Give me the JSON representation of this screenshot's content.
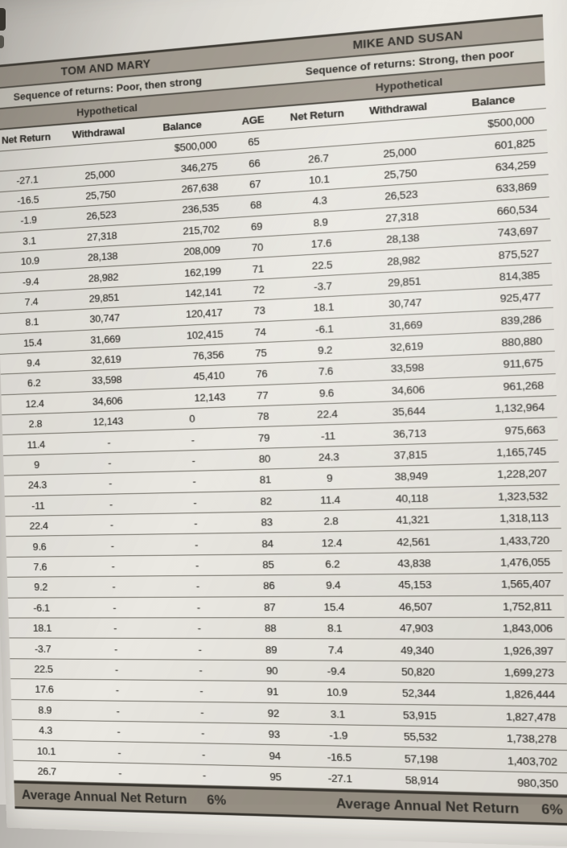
{
  "document": {
    "age_header": "AGE",
    "left_panel": {
      "title": "TOM AND MARY",
      "sequence_label": "Sequence of returns: Poor, then strong",
      "hypothetical_label": "Hypothetical",
      "col_net_return": "Net Return",
      "col_withdrawal": "Withdrawal",
      "col_balance": "Balance",
      "footer_label": "Average Annual Net Return",
      "footer_value": "6%"
    },
    "right_panel": {
      "title": "MIKE AND SUSAN",
      "sequence_label": "Sequence of returns: Strong, then poor",
      "hypothetical_label": "Hypothetical",
      "col_net_return": "Net Return",
      "col_withdrawal": "Withdrawal",
      "col_balance": "Balance",
      "footer_label": "Average Annual Net Return",
      "footer_value": "6%"
    },
    "rows": [
      {
        "age": "65",
        "left": [
          "",
          "",
          "$500,000"
        ],
        "right": [
          "",
          "",
          "$500,000"
        ]
      },
      {
        "age": "66",
        "left": [
          "-27.1",
          "25,000",
          "346,275"
        ],
        "right": [
          "26.7",
          "25,000",
          "601,825"
        ]
      },
      {
        "age": "67",
        "left": [
          "-16.5",
          "25,750",
          "267,638"
        ],
        "right": [
          "10.1",
          "25,750",
          "634,259"
        ]
      },
      {
        "age": "68",
        "left": [
          "-1.9",
          "26,523",
          "236,535"
        ],
        "right": [
          "4.3",
          "26,523",
          "633,869"
        ]
      },
      {
        "age": "69",
        "left": [
          "3.1",
          "27,318",
          "215,702"
        ],
        "right": [
          "8.9",
          "27,318",
          "660,534"
        ]
      },
      {
        "age": "70",
        "left": [
          "10.9",
          "28,138",
          "208,009"
        ],
        "right": [
          "17.6",
          "28,138",
          "743,697"
        ]
      },
      {
        "age": "71",
        "left": [
          "-9.4",
          "28,982",
          "162,199"
        ],
        "right": [
          "22.5",
          "28,982",
          "875,527"
        ]
      },
      {
        "age": "72",
        "left": [
          "7.4",
          "29,851",
          "142,141"
        ],
        "right": [
          "-3.7",
          "29,851",
          "814,385"
        ]
      },
      {
        "age": "73",
        "left": [
          "8.1",
          "30,747",
          "120,417"
        ],
        "right": [
          "18.1",
          "30,747",
          "925,477"
        ]
      },
      {
        "age": "74",
        "left": [
          "15.4",
          "31,669",
          "102,415"
        ],
        "right": [
          "-6.1",
          "31,669",
          "839,286"
        ]
      },
      {
        "age": "75",
        "left": [
          "9.4",
          "32,619",
          "76,356"
        ],
        "right": [
          "9.2",
          "32,619",
          "880,880"
        ]
      },
      {
        "age": "76",
        "left": [
          "6.2",
          "33,598",
          "45,410"
        ],
        "right": [
          "7.6",
          "33,598",
          "911,675"
        ]
      },
      {
        "age": "77",
        "left": [
          "12.4",
          "34,606",
          "12,143"
        ],
        "right": [
          "9.6",
          "34,606",
          "961,268"
        ]
      },
      {
        "age": "78",
        "left": [
          "2.8",
          "12,143",
          "0"
        ],
        "right": [
          "22.4",
          "35,644",
          "1,132,964"
        ]
      },
      {
        "age": "79",
        "left": [
          "11.4",
          "-",
          "-"
        ],
        "right": [
          "-11",
          "36,713",
          "975,663"
        ]
      },
      {
        "age": "80",
        "left": [
          "9",
          "-",
          "-"
        ],
        "right": [
          "24.3",
          "37,815",
          "1,165,745"
        ]
      },
      {
        "age": "81",
        "left": [
          "24.3",
          "-",
          "-"
        ],
        "right": [
          "9",
          "38,949",
          "1,228,207"
        ]
      },
      {
        "age": "82",
        "left": [
          "-11",
          "-",
          "-"
        ],
        "right": [
          "11.4",
          "40,118",
          "1,323,532"
        ]
      },
      {
        "age": "83",
        "left": [
          "22.4",
          "-",
          "-"
        ],
        "right": [
          "2.8",
          "41,321",
          "1,318,113"
        ]
      },
      {
        "age": "84",
        "left": [
          "9.6",
          "-",
          "-"
        ],
        "right": [
          "12.4",
          "42,561",
          "1,433,720"
        ]
      },
      {
        "age": "85",
        "left": [
          "7.6",
          "-",
          "-"
        ],
        "right": [
          "6.2",
          "43,838",
          "1,476,055"
        ]
      },
      {
        "age": "86",
        "left": [
          "9.2",
          "-",
          "-"
        ],
        "right": [
          "9.4",
          "45,153",
          "1,565,407"
        ]
      },
      {
        "age": "87",
        "left": [
          "-6.1",
          "-",
          "-"
        ],
        "right": [
          "15.4",
          "46,507",
          "1,752,811"
        ]
      },
      {
        "age": "88",
        "left": [
          "18.1",
          "-",
          "-"
        ],
        "right": [
          "8.1",
          "47,903",
          "1,843,006"
        ]
      },
      {
        "age": "89",
        "left": [
          "-3.7",
          "-",
          "-"
        ],
        "right": [
          "7.4",
          "49,340",
          "1,926,397"
        ]
      },
      {
        "age": "90",
        "left": [
          "22.5",
          "-",
          "-"
        ],
        "right": [
          "-9.4",
          "50,820",
          "1,699,273"
        ]
      },
      {
        "age": "91",
        "left": [
          "17.6",
          "-",
          "-"
        ],
        "right": [
          "10.9",
          "52,344",
          "1,826,444"
        ]
      },
      {
        "age": "92",
        "left": [
          "8.9",
          "-",
          "-"
        ],
        "right": [
          "3.1",
          "53,915",
          "1,827,478"
        ]
      },
      {
        "age": "93",
        "left": [
          "4.3",
          "-",
          "-"
        ],
        "right": [
          "-1.9",
          "55,532",
          "1,738,278"
        ]
      },
      {
        "age": "94",
        "left": [
          "10.1",
          "-",
          "-"
        ],
        "right": [
          "-16.5",
          "57,198",
          "1,403,702"
        ]
      },
      {
        "age": "95",
        "left": [
          "26.7",
          "-",
          "-"
        ],
        "right": [
          "-27.1",
          "58,914",
          "980,350"
        ]
      }
    ]
  },
  "colors": {
    "header_band": "#a7a095",
    "sequence_band": "#d8d5cc",
    "footer_band": "#968f83",
    "page": "#e8e6e0",
    "ink": "#2e2c28"
  }
}
